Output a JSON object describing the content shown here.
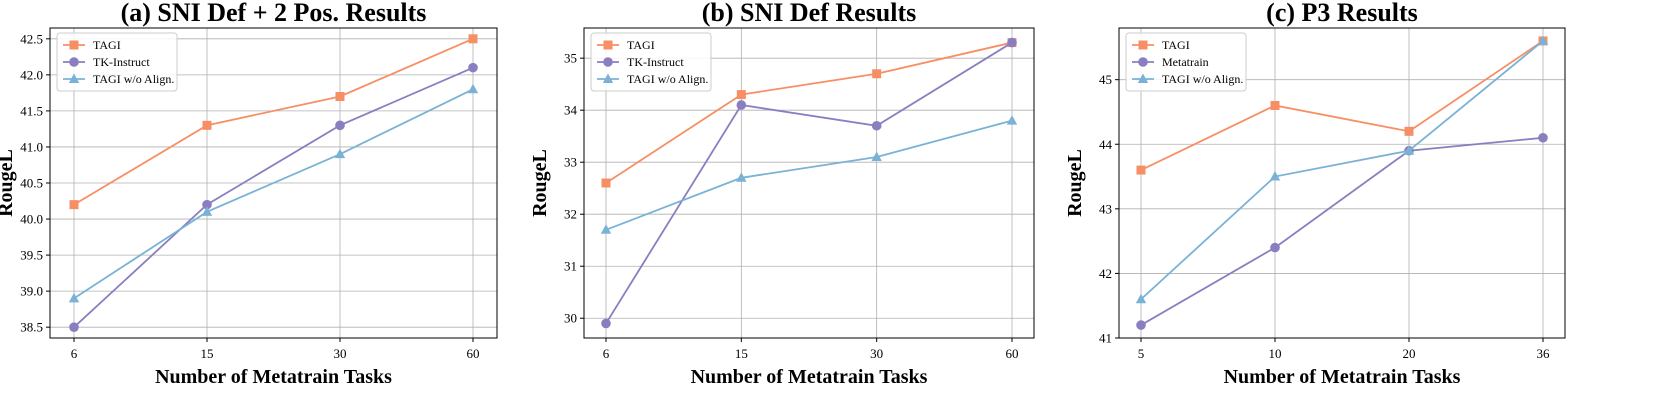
{
  "chart_data": [
    {
      "type": "line",
      "title": "(a) SNI Def + 2 Pos. Results",
      "xlabel": "Number of Metatrain Tasks",
      "ylabel": "RougeL",
      "categories": [
        "6",
        "15",
        "30",
        "60"
      ],
      "ylim": [
        38.35,
        42.65
      ],
      "yticks": [
        38.5,
        39.0,
        39.5,
        40.0,
        40.5,
        41.0,
        41.5,
        42.0,
        42.5
      ],
      "ytick_labels": [
        "38.5",
        "39.0",
        "39.5",
        "40.0",
        "40.5",
        "41.0",
        "41.5",
        "42.0",
        "42.5"
      ],
      "grid": true,
      "legend_position": "top-left",
      "series": [
        {
          "name": "TAGI",
          "values": [
            40.2,
            41.3,
            41.7,
            42.5
          ],
          "color": "#F78F64",
          "marker": "square"
        },
        {
          "name": "TK-Instruct",
          "values": [
            38.5,
            40.2,
            41.3,
            42.1
          ],
          "color": "#8B7EC0",
          "marker": "circle"
        },
        {
          "name": "TAGI w/o Align.",
          "values": [
            38.9,
            40.1,
            40.9,
            41.8
          ],
          "color": "#7AB2D6",
          "marker": "triangle"
        }
      ]
    },
    {
      "type": "line",
      "title": "(b) SNI Def Results",
      "xlabel": "Number of Metatrain Tasks",
      "ylabel": "RougeL",
      "categories": [
        "6",
        "15",
        "30",
        "60"
      ],
      "ylim": [
        29.62,
        35.58
      ],
      "yticks": [
        30,
        31,
        32,
        33,
        34,
        35
      ],
      "ytick_labels": [
        "30",
        "31",
        "32",
        "33",
        "34",
        "35"
      ],
      "grid": true,
      "legend_position": "top-left",
      "series": [
        {
          "name": "TAGI",
          "values": [
            32.6,
            34.3,
            34.7,
            35.3
          ],
          "color": "#F78F64",
          "marker": "square"
        },
        {
          "name": "TK-Instruct",
          "values": [
            29.9,
            34.1,
            33.7,
            35.3
          ],
          "color": "#8B7EC0",
          "marker": "circle"
        },
        {
          "name": "TAGI w/o Align.",
          "values": [
            31.7,
            32.7,
            33.1,
            33.8
          ],
          "color": "#7AB2D6",
          "marker": "triangle"
        }
      ]
    },
    {
      "type": "line",
      "title": "(c) P3 Results",
      "xlabel": "Number of Metatrain Tasks",
      "ylabel": "RougeL",
      "categories": [
        "5",
        "10",
        "20",
        "36"
      ],
      "ylim": [
        41.0,
        45.8
      ],
      "yticks": [
        41,
        42,
        43,
        44,
        45
      ],
      "ytick_labels": [
        "41",
        "42",
        "43",
        "44",
        "45"
      ],
      "grid": true,
      "legend_position": "top-left",
      "series": [
        {
          "name": "TAGI",
          "values": [
            43.6,
            44.6,
            44.2,
            45.6
          ],
          "color": "#F78F64",
          "marker": "square"
        },
        {
          "name": "Metatrain",
          "values": [
            41.2,
            42.4,
            43.9,
            44.1
          ],
          "color": "#8B7EC0",
          "marker": "circle"
        },
        {
          "name": "TAGI w/o Align.",
          "values": [
            41.6,
            43.5,
            43.9,
            45.6
          ],
          "color": "#7AB2D6",
          "marker": "triangle"
        }
      ]
    }
  ]
}
